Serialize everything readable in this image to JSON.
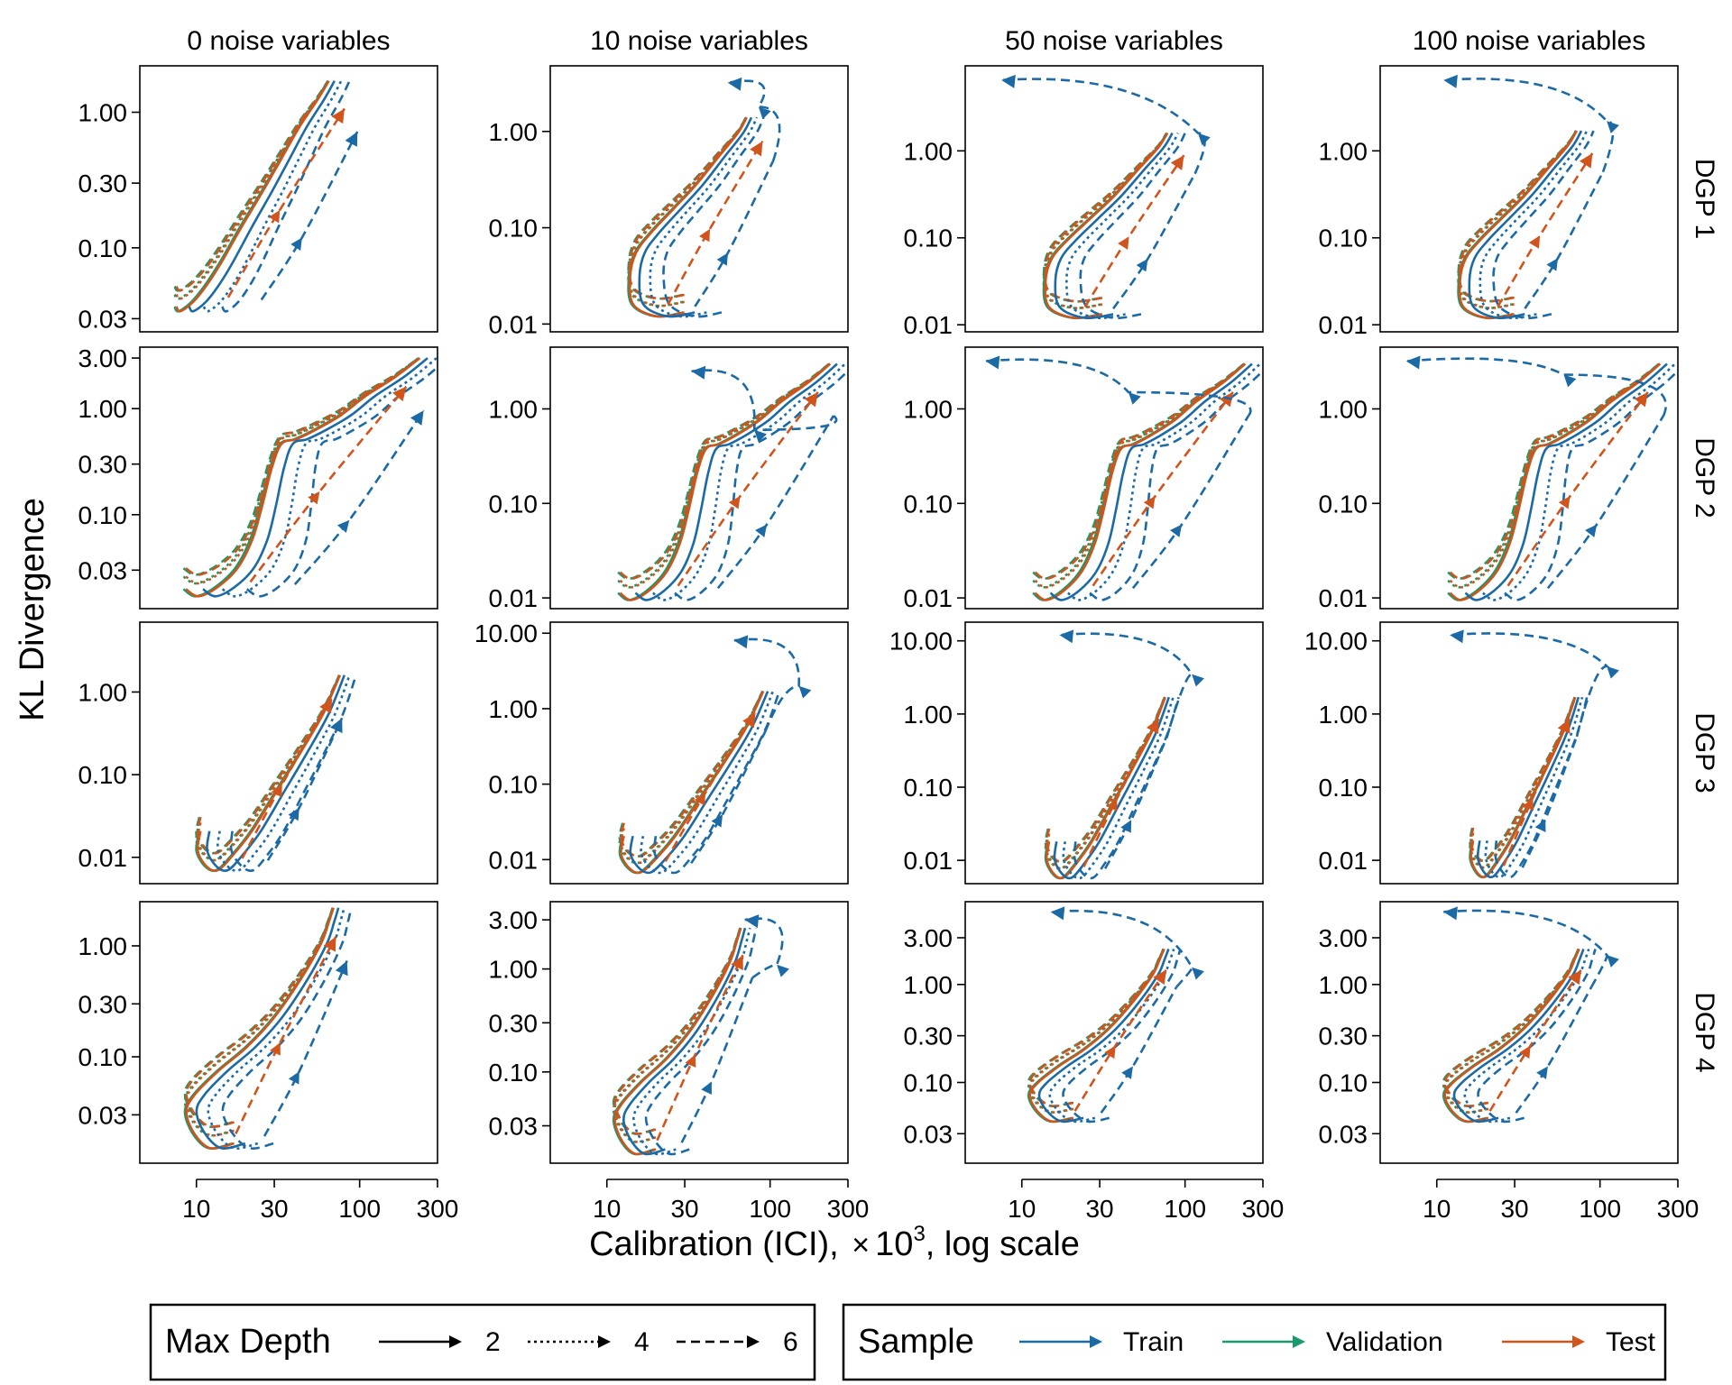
{
  "figure": {
    "xlabel_main": "Calibration (ICI), ",
    "xlabel_times": "×",
    "xlabel_base": "10",
    "xlabel_exp": "3",
    "xlabel_tail": ", log scale",
    "ylabel": "KL Divergence"
  },
  "colors": {
    "train": "#1b6aa5",
    "validation": "#1a9a6a",
    "test": "#d0541b"
  },
  "legend": {
    "depth": {
      "title": "Max Depth",
      "items": [
        "2",
        "4",
        "6"
      ],
      "dash_styles": [
        "solid",
        "dotted",
        "dashed"
      ]
    },
    "sample": {
      "title": "Sample",
      "items": [
        "Train",
        "Validation",
        "Test"
      ]
    }
  },
  "chart_data": {
    "type": "line",
    "layout": "4x4 small multiples",
    "columns": [
      "0 noise variables",
      "10 noise variables",
      "50 noise variables",
      "100 noise variables"
    ],
    "rows": [
      "DGP 1",
      "DGP 2",
      "DGP 3",
      "DGP 4"
    ],
    "x_scale": "log",
    "x_ticks": [
      10,
      30,
      100,
      300
    ],
    "x_tick_labels": [
      "10",
      "30",
      "100",
      "300"
    ],
    "x_range": [
      4.5,
      300
    ],
    "y_scale": "log",
    "grid": false,
    "series_encoding": {
      "color": "Sample",
      "linetype": "Max Depth"
    },
    "panels": [
      [
        {
          "yticks": [
            0.03,
            0.1,
            0.3,
            1.0
          ],
          "ylabels": [
            "0.03",
            "0.10",
            "0.30",
            "1.00"
          ],
          "ylim": [
            0.024,
            2.2
          ],
          "shape": "A",
          "ref": [
            6.8,
            0.034,
            92,
            1.7
          ],
          "return": false
        },
        {
          "yticks": [
            0.01,
            0.1,
            1.0
          ],
          "ylabels": [
            "0.01",
            "0.10",
            "1.00"
          ],
          "ylim": [
            0.0083,
            4.8
          ],
          "shape": "B",
          "ref": [
            12,
            0.012,
            100,
            1.4
          ],
          "return": true,
          "ret_start": [
            85,
            1.8
          ],
          "ret_end": [
            55,
            3.2
          ]
        },
        {
          "yticks": [
            0.01,
            0.1,
            1.0
          ],
          "ylabels": [
            "0.01",
            "0.10",
            "1.00"
          ],
          "ylim": [
            0.0083,
            9.5
          ],
          "shape": "B",
          "ref": [
            12,
            0.012,
            110,
            1.6
          ],
          "return": true,
          "ret_start": [
            120,
            1.6
          ],
          "ret_end": [
            7.5,
            6.5
          ]
        },
        {
          "yticks": [
            0.01,
            0.1,
            1.0
          ],
          "ylabels": [
            "0.01",
            "0.10",
            "1.00"
          ],
          "ylim": [
            0.0083,
            9.5
          ],
          "shape": "B",
          "ref": [
            12,
            0.012,
            100,
            1.7
          ],
          "return": true,
          "ret_start": [
            110,
            2.2
          ],
          "ret_end": [
            11,
            6.5
          ]
        }
      ],
      [
        {
          "yticks": [
            0.03,
            0.1,
            0.3,
            1.0,
            3.0
          ],
          "ylabels": [
            "0.03",
            "0.10",
            "0.30",
            "1.00",
            "3.00"
          ],
          "ylim": [
            0.013,
            3.8
          ],
          "shape": "C",
          "ref": [
            7,
            0.017,
            230,
            3.0
          ],
          "return": false
        },
        {
          "yticks": [
            0.01,
            0.1,
            1.0
          ],
          "ylabels": [
            "0.01",
            "0.10",
            "1.00"
          ],
          "ylim": [
            0.0077,
            4.5
          ],
          "shape": "C",
          "ref": [
            10,
            0.0095,
            230,
            3.0
          ],
          "return": true,
          "ret_start": [
            80,
            0.6
          ],
          "ret_end": [
            33,
            2.5
          ]
        },
        {
          "yticks": [
            0.01,
            0.1,
            1.0
          ],
          "ylabels": [
            "0.01",
            "0.10",
            "1.00"
          ],
          "ylim": [
            0.0077,
            4.5
          ],
          "shape": "C",
          "ref": [
            10,
            0.0095,
            230,
            3.0
          ],
          "return": true,
          "ret_start": [
            45,
            1.5
          ],
          "ret_end": [
            6,
            3.2
          ]
        },
        {
          "yticks": [
            0.01,
            0.1,
            1.0
          ],
          "ylabels": [
            "0.01",
            "0.10",
            "1.00"
          ],
          "ylim": [
            0.0077,
            4.5
          ],
          "shape": "C",
          "ref": [
            10,
            0.0095,
            230,
            3.0
          ],
          "return": true,
          "ret_start": [
            60,
            2.3
          ],
          "ret_end": [
            6.5,
            3.2
          ]
        }
      ],
      [
        {
          "yticks": [
            0.01,
            0.1,
            1.0
          ],
          "ylabels": [
            "0.01",
            "0.10",
            "1.00"
          ],
          "ylim": [
            0.0048,
            7.0
          ],
          "shape": "D",
          "ref": [
            10,
            0.007,
            75,
            1.6
          ],
          "return": false
        },
        {
          "yticks": [
            0.01,
            0.1,
            1.0,
            10.0
          ],
          "ylabels": [
            "0.01",
            "0.10",
            "1.00",
            "10.00"
          ],
          "ylim": [
            0.0048,
            14.0
          ],
          "shape": "D",
          "ref": [
            12,
            0.0068,
            90,
            1.7
          ],
          "return": true,
          "ret_start": [
            150,
            2.0
          ],
          "ret_end": [
            60,
            8.0
          ]
        },
        {
          "yticks": [
            0.01,
            0.1,
            1.0,
            10.0
          ],
          "ylabels": [
            "0.01",
            "0.10",
            "1.00",
            "10.00"
          ],
          "ylim": [
            0.0048,
            18.0
          ],
          "shape": "D",
          "ref": [
            14,
            0.0058,
            75,
            1.7
          ],
          "return": true,
          "ret_start": [
            110,
            3.5
          ],
          "ret_end": [
            17,
            12.0
          ]
        },
        {
          "yticks": [
            0.01,
            0.1,
            1.0,
            10.0
          ],
          "ylabels": [
            "0.01",
            "0.10",
            "1.00",
            "10.00"
          ],
          "ylim": [
            0.0048,
            18.0
          ],
          "shape": "D",
          "ref": [
            16,
            0.006,
            70,
            1.7
          ],
          "return": true,
          "ret_start": [
            110,
            4.5
          ],
          "ret_end": [
            12,
            12.0
          ]
        }
      ],
      [
        {
          "yticks": [
            0.03,
            0.1,
            0.3,
            1.0
          ],
          "ylabels": [
            "0.03",
            "0.10",
            "0.30",
            "1.00"
          ],
          "ylim": [
            0.011,
            2.5
          ],
          "shape": "E",
          "ref": [
            8.5,
            0.015,
            80,
            2.2
          ],
          "return": false
        },
        {
          "yticks": [
            0.03,
            0.1,
            0.3,
            1.0,
            3.0
          ],
          "ylabels": [
            "0.03",
            "0.10",
            "0.30",
            "1.00",
            "3.00"
          ],
          "ylim": [
            0.013,
            4.5
          ],
          "shape": "E",
          "ref": [
            11,
            0.016,
            75,
            2.5
          ],
          "return": true,
          "ret_start": [
            110,
            1.1
          ],
          "ret_end": [
            70,
            3.0
          ]
        },
        {
          "yticks": [
            0.03,
            0.1,
            0.3,
            1.0,
            3.0
          ],
          "ylabels": [
            "0.03",
            "0.10",
            "0.30",
            "1.00",
            "3.00"
          ],
          "ylim": [
            0.015,
            7.0
          ],
          "shape": "E",
          "ref": [
            11,
            0.04,
            85,
            2.3
          ],
          "return": true,
          "ret_start": [
            110,
            1.5
          ],
          "ret_end": [
            15,
            5.5
          ]
        },
        {
          "yticks": [
            0.03,
            0.1,
            0.3,
            1.0,
            3.0
          ],
          "ylabels": [
            "0.03",
            "0.10",
            "0.30",
            "1.00",
            "3.00"
          ],
          "ylim": [
            0.015,
            7.0
          ],
          "shape": "E",
          "ref": [
            11,
            0.04,
            85,
            2.3
          ],
          "return": true,
          "ret_start": [
            110,
            2.0
          ],
          "ret_end": [
            11,
            5.5
          ]
        }
      ]
    ]
  }
}
